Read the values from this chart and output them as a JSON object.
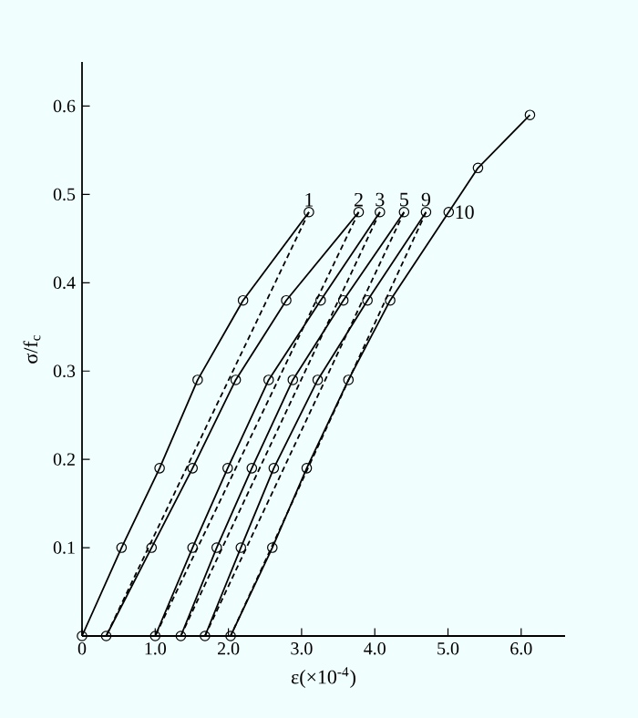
{
  "chart_data": {
    "type": "line",
    "xlabel": "ε(×10$^{-4}$)",
    "ylabel": "σ/f$_{c}$",
    "xlim": [
      0,
      6.6
    ],
    "ylim": [
      0,
      0.65
    ],
    "xticks": [
      {
        "value": 0,
        "label": "0"
      },
      {
        "value": 1,
        "label": "1.0"
      },
      {
        "value": 2,
        "label": "2.0"
      },
      {
        "value": 3,
        "label": "3.0"
      },
      {
        "value": 4,
        "label": "4.0"
      },
      {
        "value": 5,
        "label": "5.0"
      },
      {
        "value": 6,
        "label": "6.0"
      }
    ],
    "yticks": [
      0.1,
      0.2,
      0.3,
      0.4,
      0.5,
      0.6
    ],
    "grid": false,
    "marker": "circle",
    "line_style": "solid",
    "series": [
      {
        "name": "1",
        "color": "#000000",
        "x": [
          0,
          0.54,
          1.06,
          1.58,
          2.2,
          3.1
        ],
        "values": [
          0,
          0.1,
          0.19,
          0.29,
          0.38,
          0.48
        ]
      },
      {
        "name": "2",
        "color": "#000000",
        "x": [
          0.33,
          0.95,
          1.51,
          2.1,
          2.79,
          3.78
        ],
        "values": [
          0,
          0.1,
          0.19,
          0.29,
          0.38,
          0.48
        ]
      },
      {
        "name": "3",
        "color": "#000000",
        "x": [
          1.0,
          1.51,
          1.99,
          2.55,
          3.26,
          4.07
        ],
        "values": [
          0,
          0.1,
          0.19,
          0.29,
          0.38,
          0.48
        ]
      },
      {
        "name": "5",
        "color": "#000000",
        "x": [
          1.35,
          1.84,
          2.32,
          2.88,
          3.57,
          4.4
        ],
        "values": [
          0,
          0.1,
          0.19,
          0.29,
          0.38,
          0.48
        ]
      },
      {
        "name": "9",
        "color": "#000000",
        "x": [
          1.68,
          2.17,
          2.62,
          3.22,
          3.9,
          4.7
        ],
        "values": [
          0,
          0.1,
          0.19,
          0.29,
          0.38,
          0.48
        ]
      },
      {
        "name": "10",
        "color": "#000000",
        "x": [
          2.03,
          2.6,
          3.07,
          3.64,
          4.21,
          5.01,
          5.41,
          6.12
        ],
        "values": [
          0,
          0.1,
          0.19,
          0.29,
          0.38,
          0.48,
          0.53,
          0.59
        ]
      },
      {
        "color": "#000000",
        "line_style": "dashed",
        "marker": "none",
        "x": [
          3.1,
          0.33
        ],
        "values": [
          0.48,
          0
        ]
      },
      {
        "color": "#000000",
        "line_style": "dashed",
        "marker": "none",
        "x": [
          3.78,
          1.0
        ],
        "values": [
          0.48,
          0
        ]
      },
      {
        "color": "#000000",
        "line_style": "dashed",
        "marker": "none",
        "x": [
          4.07,
          1.35
        ],
        "values": [
          0.48,
          0
        ]
      },
      {
        "color": "#000000",
        "line_style": "dashed",
        "marker": "none",
        "x": [
          4.4,
          1.68
        ],
        "values": [
          0.48,
          0
        ]
      },
      {
        "color": "#000000",
        "line_style": "dashed",
        "marker": "none",
        "x": [
          4.7,
          2.03
        ],
        "values": [
          0.48,
          0
        ]
      }
    ]
  }
}
